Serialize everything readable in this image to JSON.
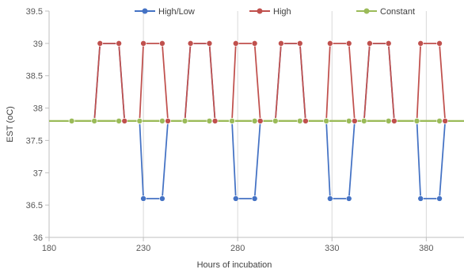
{
  "chart_data": {
    "type": "line",
    "title": "",
    "xlabel": "Hours of incubation",
    "ylabel": "EST (oC)",
    "xlim": [
      180,
      400
    ],
    "ylim": [
      36,
      39.5
    ],
    "x_ticks": [
      180,
      230,
      280,
      330,
      380
    ],
    "x_tick_labels": [
      "180",
      "230",
      "280",
      "330",
      "380"
    ],
    "y_ticks": [
      36,
      36.5,
      37,
      37.5,
      38,
      38.5,
      39,
      39.5
    ],
    "y_tick_labels": [
      "36",
      "36.5",
      "37",
      "37.5",
      "38",
      "38.5",
      "39",
      "39.5"
    ],
    "grid": "vertical",
    "legend_position": "top",
    "series": [
      {
        "name": "High/Low",
        "color": "#4472C4",
        "points": [
          [
            192,
            37.8
          ],
          [
            204,
            37.8
          ],
          [
            207,
            39
          ],
          [
            217,
            39
          ],
          [
            220,
            37.8
          ],
          [
            228,
            37.8
          ],
          [
            230,
            36.6
          ],
          [
            240,
            36.6
          ],
          [
            243,
            37.8
          ],
          [
            252,
            37.8
          ],
          [
            255,
            39
          ],
          [
            265,
            39
          ],
          [
            268,
            37.8
          ],
          [
            277,
            37.8
          ],
          [
            279,
            36.6
          ],
          [
            289,
            36.6
          ],
          [
            292,
            37.8
          ],
          [
            300,
            37.8
          ],
          [
            303,
            39
          ],
          [
            313,
            39
          ],
          [
            316,
            37.8
          ],
          [
            327,
            37.8
          ],
          [
            329,
            36.6
          ],
          [
            339,
            36.6
          ],
          [
            342,
            37.8
          ],
          [
            347,
            37.8
          ],
          [
            350,
            39
          ],
          [
            360,
            39
          ],
          [
            363,
            37.8
          ],
          [
            375,
            37.8
          ],
          [
            377,
            36.6
          ],
          [
            387,
            36.6
          ],
          [
            390,
            37.8
          ]
        ]
      },
      {
        "name": "High",
        "color": "#C0504D",
        "points": [
          [
            192,
            37.8
          ],
          [
            204,
            37.8
          ],
          [
            207,
            39
          ],
          [
            217,
            39
          ],
          [
            220,
            37.8
          ],
          [
            228,
            37.8
          ],
          [
            230,
            39
          ],
          [
            240,
            39
          ],
          [
            243,
            37.8
          ],
          [
            252,
            37.8
          ],
          [
            255,
            39
          ],
          [
            265,
            39
          ],
          [
            268,
            37.8
          ],
          [
            277,
            37.8
          ],
          [
            279,
            39
          ],
          [
            289,
            39
          ],
          [
            292,
            37.8
          ],
          [
            300,
            37.8
          ],
          [
            303,
            39
          ],
          [
            313,
            39
          ],
          [
            316,
            37.8
          ],
          [
            327,
            37.8
          ],
          [
            329,
            39
          ],
          [
            339,
            39
          ],
          [
            342,
            37.8
          ],
          [
            347,
            37.8
          ],
          [
            350,
            39
          ],
          [
            360,
            39
          ],
          [
            363,
            37.8
          ],
          [
            375,
            37.8
          ],
          [
            377,
            39
          ],
          [
            387,
            39
          ],
          [
            390,
            37.8
          ]
        ]
      },
      {
        "name": "Constant",
        "color": "#9BBB59",
        "points": [
          [
            192,
            37.8
          ],
          [
            204,
            37.8
          ],
          [
            217,
            37.8
          ],
          [
            228,
            37.8
          ],
          [
            240,
            37.8
          ],
          [
            252,
            37.8
          ],
          [
            265,
            37.8
          ],
          [
            277,
            37.8
          ],
          [
            289,
            37.8
          ],
          [
            300,
            37.8
          ],
          [
            313,
            37.8
          ],
          [
            327,
            37.8
          ],
          [
            339,
            37.8
          ],
          [
            347,
            37.8
          ],
          [
            360,
            37.8
          ],
          [
            375,
            37.8
          ],
          [
            387,
            37.8
          ]
        ]
      }
    ]
  }
}
